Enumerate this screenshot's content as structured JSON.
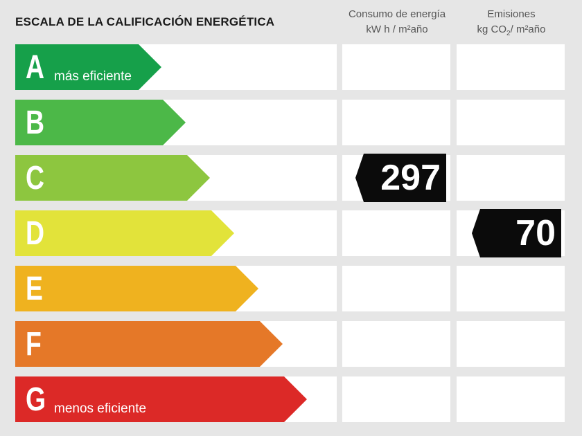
{
  "title": "ESCALA DE LA CALIFICACIÓN ENERGÉTICA",
  "columns": {
    "consumo": {
      "line1": "Consumo de energía",
      "line2": "kW h / m²año"
    },
    "emisiones": {
      "line1": "Emisiones",
      "line2_pre": "kg CO",
      "line2_sub": "2",
      "line2_post": "/ m²año"
    }
  },
  "chart_data": {
    "type": "table",
    "title": "ESCALA DE LA CALIFICACIÓN ENERGÉTICA",
    "categories": [
      "A",
      "B",
      "C",
      "D",
      "E",
      "F",
      "G"
    ],
    "category_notes": {
      "A": "más eficiente",
      "G": "menos eficiente"
    },
    "band_colors": [
      "#16a04a",
      "#4cb848",
      "#8dc63f",
      "#e2e33a",
      "#efb21f",
      "#e57828",
      "#dc2927"
    ],
    "series": [
      {
        "name": "Consumo de energía kW h / m²año",
        "category": "C",
        "value": 297
      },
      {
        "name": "Emisiones kg CO2/ m²año",
        "category": "D",
        "value": 70
      }
    ]
  },
  "labels": {
    "a_note": "más eficiente",
    "g_note": "menos eficiente",
    "consumo_value": "297",
    "emisiones_value": "70"
  }
}
